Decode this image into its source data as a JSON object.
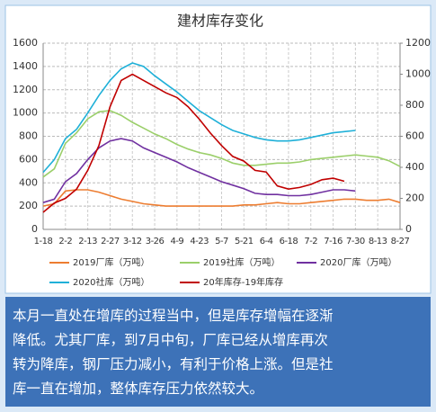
{
  "chart_data": {
    "type": "line",
    "title": "建材库存变化",
    "categories": [
      "1-18",
      null,
      "2-2",
      null,
      "2-13",
      null,
      "2-27",
      null,
      "3-12",
      null,
      "3-26",
      null,
      "4-9",
      null,
      "4-23",
      null,
      "5-7",
      null,
      "5-21",
      null,
      "6-4",
      null,
      "6-18",
      null,
      "7-2",
      null,
      "7-16",
      null,
      "7-30",
      null,
      "8-13",
      null,
      "8-27"
    ],
    "series": [
      {
        "name": "2019厂库（万吨）",
        "color": "#ed7d31",
        "values": [
          200,
          220,
          330,
          340,
          340,
          320,
          290,
          260,
          240,
          220,
          210,
          200,
          200,
          200,
          200,
          200,
          200,
          200,
          210,
          210,
          220,
          230,
          220,
          220,
          230,
          240,
          250,
          260,
          260,
          250,
          250,
          260,
          230
        ]
      },
      {
        "name": "2019社库（万吨）",
        "color": "#9bcf6a",
        "values": [
          450,
          520,
          740,
          830,
          950,
          1010,
          1020,
          980,
          920,
          870,
          820,
          780,
          730,
          690,
          660,
          640,
          610,
          570,
          550,
          550,
          560,
          570,
          570,
          580,
          600,
          610,
          620,
          630,
          640,
          630,
          620,
          590,
          540
        ]
      },
      {
        "name": "2020厂库（万吨）",
        "color": "#7030a0",
        "values": [
          230,
          260,
          410,
          480,
          600,
          700,
          760,
          780,
          760,
          700,
          660,
          620,
          580,
          530,
          490,
          450,
          410,
          380,
          350,
          310,
          300,
          300,
          290,
          290,
          300,
          320,
          340,
          340,
          330,
          null,
          null,
          null,
          null
        ]
      },
      {
        "name": "2020社库（万吨）",
        "color": "#1fb0d8",
        "values": [
          490,
          600,
          780,
          860,
          1000,
          1150,
          1280,
          1380,
          1430,
          1400,
          1320,
          1250,
          1180,
          1100,
          1020,
          960,
          900,
          850,
          820,
          790,
          770,
          760,
          760,
          770,
          790,
          810,
          830,
          840,
          850,
          null,
          null,
          null,
          null
        ]
      },
      {
        "name": "20年库存-19年库存",
        "color": "#c00000",
        "axis": "y2",
        "values": [
          110,
          170,
          200,
          260,
          380,
          540,
          790,
          960,
          1000,
          960,
          920,
          880,
          850,
          790,
          710,
          620,
          540,
          470,
          440,
          380,
          370,
          280,
          260,
          270,
          290,
          320,
          330,
          310,
          null,
          null,
          null,
          null,
          null
        ]
      }
    ],
    "ylim": [
      0,
      1600
    ],
    "yticks": [
      0,
      200,
      400,
      600,
      800,
      1000,
      1200,
      1400,
      1600
    ],
    "y2lim": [
      0,
      1200
    ],
    "y2ticks": [
      0,
      200,
      400,
      600,
      800,
      1000,
      1200
    ],
    "grid": true
  },
  "caption": [
    "本月一直处在增库的过程当中，但是库存增幅在逐渐",
    "降低。尤其厂库，到7月中旬，厂库已经从增库再次",
    "转为降库，钢厂压力减小，有利于价格上涨。但是社",
    "库一直在增加，整体库存压力依然较大。"
  ]
}
